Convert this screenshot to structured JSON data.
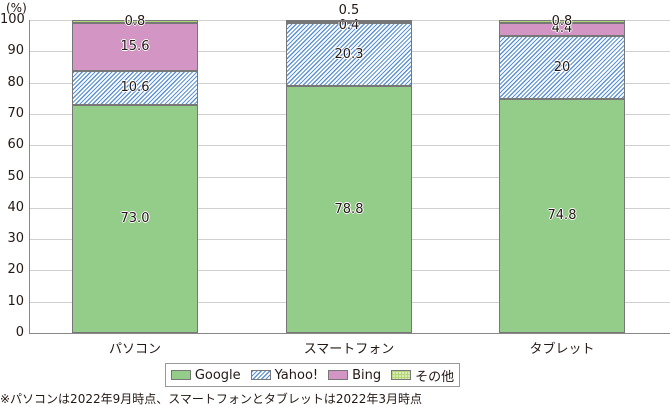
{
  "chart_data": {
    "type": "bar",
    "stacked": true,
    "title": "",
    "xlabel": "",
    "ylabel": "(%)",
    "ylim": [
      0,
      100
    ],
    "yticks": [
      "0",
      "10",
      "20",
      "30",
      "40",
      "50",
      "60",
      "70",
      "80",
      "90",
      "100"
    ],
    "categories": [
      "パソコン",
      "スマートフォン",
      "タブレット"
    ],
    "series": [
      {
        "name": "Google",
        "values": [
          73.0,
          78.8,
          74.8
        ],
        "labels": [
          "73.0",
          "78.8",
          "74.8"
        ],
        "color": "#93cd89"
      },
      {
        "name": "Yahoo!",
        "values": [
          10.6,
          20.3,
          20
        ],
        "labels": [
          "10.6",
          "20.3",
          "20"
        ],
        "color": "#5b93d6",
        "pattern": "hatched"
      },
      {
        "name": "Bing",
        "values": [
          15.6,
          0.4,
          4.4
        ],
        "labels": [
          "15.6",
          "0.4",
          "4.4"
        ],
        "color": "#d295c4"
      },
      {
        "name": "その他",
        "values": [
          0.8,
          0.5,
          0.8
        ],
        "labels": [
          "0.8",
          "0.5",
          "0.8"
        ],
        "color": "#d8ebb0",
        "pattern": "grid"
      }
    ],
    "grid": true,
    "legend_position": "bottom"
  },
  "axis": {
    "unit": "(%)"
  },
  "legend": [
    "Google",
    "Yahoo!",
    "Bing",
    "その他"
  ],
  "note": "※パソコンは2022年9月時点、スマートフォンとタブレットは2022年3月時点"
}
